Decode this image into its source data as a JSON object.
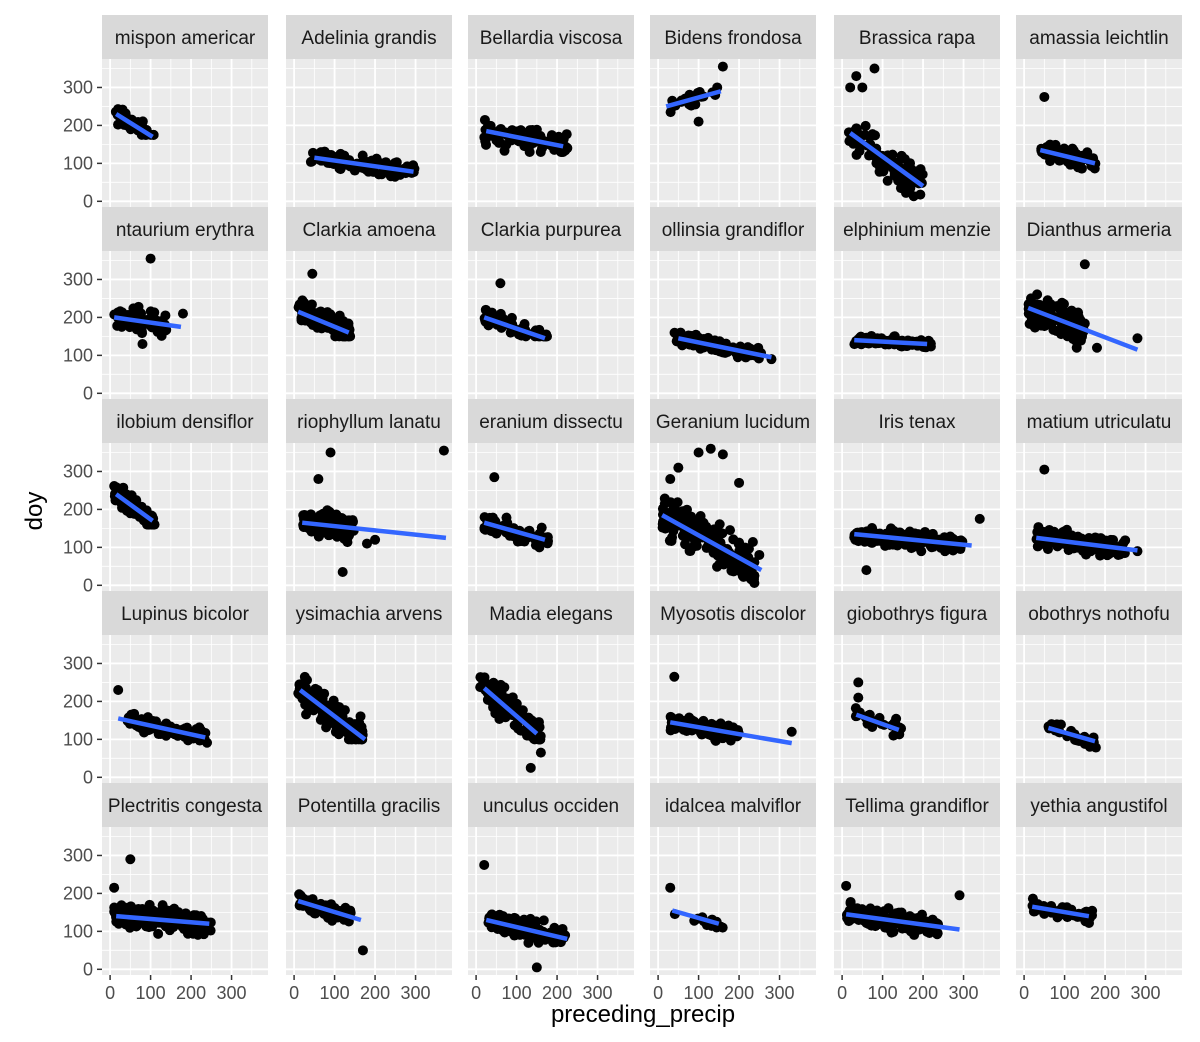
{
  "chart_data": {
    "type": "scatter",
    "subtype": "faceted scatter with linear trend lines",
    "xlabel": "preceding_precip",
    "ylabel": "doy",
    "xlim": [
      -20,
      390
    ],
    "ylim": [
      -15,
      375
    ],
    "x_ticks": [
      0,
      100,
      200,
      300
    ],
    "x_tick_labels": [
      "0",
      "100",
      "200",
      "300"
    ],
    "y_ticks": [
      0,
      100,
      200,
      300
    ],
    "y_tick_labels": [
      "0",
      "100",
      "200",
      "300"
    ],
    "grid": true,
    "facet_rows": 5,
    "facet_cols": 6,
    "colors": {
      "panel_bg": "#ebebeb",
      "grid_major": "#ffffff",
      "strip_bg": "#d9d9d9",
      "points": "#000000",
      "trend": "#3366ff",
      "tick_mark": "#333333"
    },
    "facets": [
      {
        "label": "mispon americar",
        "points": {
          "x": [
            10,
            110
          ],
          "y": [
            175,
            275
          ],
          "n": 55
        },
        "trend": [
          [
            15,
            230
          ],
          [
            105,
            170
          ]
        ]
      },
      {
        "label": "Adelinia grandis",
        "points": {
          "x": [
            40,
            300
          ],
          "y": [
            50,
            140
          ],
          "n": 110
        },
        "trend": [
          [
            50,
            115
          ],
          [
            295,
            78
          ]
        ]
      },
      {
        "label": "Bellardia viscosa",
        "points": {
          "x": [
            20,
            230
          ],
          "y": [
            130,
            290
          ],
          "n": 90
        },
        "trend": [
          [
            25,
            185
          ],
          [
            215,
            145
          ]
        ]
      },
      {
        "label": "Bidens frondosa",
        "points": {
          "x": [
            20,
            150
          ],
          "y": [
            210,
            300
          ],
          "n": 22
        },
        "extra": [
          [
            160,
            355
          ],
          [
            100,
            210
          ]
        ],
        "trend": [
          [
            20,
            250
          ],
          [
            155,
            290
          ]
        ]
      },
      {
        "label": "Brassica rapa",
        "points": {
          "x": [
            10,
            200
          ],
          "y": [
            10,
            200
          ],
          "n": 110
        },
        "extra": [
          [
            35,
            330
          ],
          [
            80,
            350
          ],
          [
            20,
            300
          ],
          [
            50,
            300
          ]
        ],
        "trend": [
          [
            20,
            180
          ],
          [
            200,
            40
          ]
        ]
      },
      {
        "label": "amassia leichtlin",
        "points": {
          "x": [
            40,
            180
          ],
          "y": [
            80,
            175
          ],
          "n": 80
        },
        "extra": [
          [
            50,
            275
          ]
        ],
        "trend": [
          [
            40,
            135
          ],
          [
            175,
            100
          ]
        ]
      },
      {
        "label": "ntaurium erythra",
        "points": {
          "x": [
            10,
            140
          ],
          "y": [
            140,
            270
          ],
          "n": 80
        },
        "extra": [
          [
            100,
            355
          ],
          [
            180,
            210
          ],
          [
            80,
            130
          ]
        ],
        "trend": [
          [
            10,
            200
          ],
          [
            175,
            175
          ]
        ]
      },
      {
        "label": "Clarkia amoena",
        "points": {
          "x": [
            10,
            140
          ],
          "y": [
            150,
            290
          ],
          "n": 110
        },
        "extra": [
          [
            45,
            315
          ]
        ],
        "trend": [
          [
            10,
            215
          ],
          [
            135,
            160
          ]
        ]
      },
      {
        "label": "Clarkia purpurea",
        "points": {
          "x": [
            20,
            180
          ],
          "y": [
            150,
            260
          ],
          "n": 60
        },
        "extra": [
          [
            60,
            290
          ]
        ],
        "trend": [
          [
            20,
            200
          ],
          [
            170,
            145
          ]
        ]
      },
      {
        "label": "ollinsia grandiflor",
        "points": {
          "x": [
            40,
            260
          ],
          "y": [
            90,
            170
          ],
          "n": 110
        },
        "extra": [
          [
            280,
            90
          ]
        ],
        "trend": [
          [
            50,
            145
          ],
          [
            280,
            95
          ]
        ]
      },
      {
        "label": "elphinium menzie",
        "points": {
          "x": [
            30,
            220
          ],
          "y": [
            110,
            165
          ],
          "n": 110
        },
        "trend": [
          [
            30,
            140
          ],
          [
            210,
            130
          ]
        ]
      },
      {
        "label": "Dianthus armeria",
        "points": {
          "x": [
            10,
            150
          ],
          "y": [
            130,
            320
          ],
          "n": 130
        },
        "extra": [
          [
            150,
            340
          ],
          [
            280,
            145
          ],
          [
            180,
            120
          ],
          [
            130,
            120
          ]
        ],
        "trend": [
          [
            10,
            225
          ],
          [
            280,
            115
          ]
        ]
      },
      {
        "label": "ilobium densiflor",
        "points": {
          "x": [
            10,
            110
          ],
          "y": [
            160,
            290
          ],
          "n": 110
        },
        "trend": [
          [
            15,
            240
          ],
          [
            105,
            170
          ]
        ]
      },
      {
        "label": "riophyllum lanatu",
        "points": {
          "x": [
            20,
            150
          ],
          "y": [
            80,
            230
          ],
          "n": 140
        },
        "extra": [
          [
            90,
            350
          ],
          [
            370,
            355
          ],
          [
            180,
            110
          ],
          [
            200,
            120
          ],
          [
            120,
            35
          ],
          [
            60,
            280
          ]
        ],
        "trend": [
          [
            20,
            165
          ],
          [
            375,
            125
          ]
        ]
      },
      {
        "label": "eranium dissectu",
        "points": {
          "x": [
            20,
            180
          ],
          "y": [
            100,
            220
          ],
          "n": 80
        },
        "extra": [
          [
            45,
            285
          ]
        ],
        "trend": [
          [
            20,
            165
          ],
          [
            170,
            120
          ]
        ]
      },
      {
        "label": "Geranium lucidum",
        "points": {
          "x": [
            10,
            240
          ],
          "y": [
            0,
            230
          ],
          "n": 200
        },
        "extra": [
          [
            50,
            310
          ],
          [
            100,
            350
          ],
          [
            130,
            360
          ],
          [
            160,
            345
          ],
          [
            30,
            280
          ],
          [
            200,
            270
          ],
          [
            250,
            80
          ]
        ],
        "trend": [
          [
            10,
            185
          ],
          [
            255,
            40
          ]
        ]
      },
      {
        "label": "Iris tenax",
        "points": {
          "x": [
            30,
            300
          ],
          "y": [
            90,
            190
          ],
          "n": 170
        },
        "extra": [
          [
            340,
            175
          ],
          [
            60,
            40
          ]
        ],
        "trend": [
          [
            30,
            135
          ],
          [
            320,
            105
          ]
        ]
      },
      {
        "label": "matium utriculatu",
        "points": {
          "x": [
            30,
            250
          ],
          "y": [
            50,
            160
          ],
          "n": 150
        },
        "extra": [
          [
            50,
            305
          ],
          [
            280,
            90
          ]
        ],
        "trend": [
          [
            30,
            125
          ],
          [
            280,
            92
          ]
        ]
      },
      {
        "label": "Lupinus bicolor",
        "points": {
          "x": [
            40,
            240
          ],
          "y": [
            90,
            175
          ],
          "n": 100
        },
        "extra": [
          [
            20,
            230
          ]
        ],
        "trend": [
          [
            20,
            155
          ],
          [
            235,
            105
          ]
        ]
      },
      {
        "label": "ysimachia arvens",
        "points": {
          "x": [
            10,
            170
          ],
          "y": [
            100,
            300
          ],
          "n": 120
        },
        "trend": [
          [
            15,
            230
          ],
          [
            175,
            100
          ]
        ]
      },
      {
        "label": "Madia elegans",
        "points": {
          "x": [
            10,
            160
          ],
          "y": [
            100,
            300
          ],
          "n": 120
        },
        "extra": [
          [
            160,
            65
          ],
          [
            135,
            25
          ]
        ],
        "trend": [
          [
            20,
            235
          ],
          [
            150,
            115
          ]
        ]
      },
      {
        "label": "Myosotis discolor",
        "points": {
          "x": [
            30,
            200
          ],
          "y": [
            80,
            180
          ],
          "n": 110
        },
        "extra": [
          [
            40,
            265
          ],
          [
            330,
            120
          ]
        ],
        "trend": [
          [
            30,
            145
          ],
          [
            330,
            90
          ]
        ]
      },
      {
        "label": "giobothrys figura",
        "points": {
          "x": [
            30,
            150
          ],
          "y": [
            100,
            200
          ],
          "n": 25
        },
        "extra": [
          [
            40,
            250
          ],
          [
            40,
            210
          ]
        ],
        "trend": [
          [
            35,
            165
          ],
          [
            140,
            125
          ]
        ]
      },
      {
        "label": "obothrys nothofu",
        "points": {
          "x": [
            60,
            180
          ],
          "y": [
            70,
            160
          ],
          "n": 35
        },
        "trend": [
          [
            60,
            130
          ],
          [
            175,
            95
          ]
        ]
      },
      {
        "label": "Plectritis congesta",
        "points": {
          "x": [
            10,
            250
          ],
          "y": [
            70,
            210
          ],
          "n": 170
        },
        "extra": [
          [
            50,
            290
          ],
          [
            10,
            215
          ]
        ],
        "trend": [
          [
            15,
            140
          ],
          [
            245,
            120
          ]
        ]
      },
      {
        "label": "Potentilla gracilis",
        "points": {
          "x": [
            10,
            140
          ],
          "y": [
            120,
            225
          ],
          "n": 70
        },
        "extra": [
          [
            170,
            50
          ]
        ],
        "trend": [
          [
            10,
            180
          ],
          [
            165,
            130
          ]
        ]
      },
      {
        "label": "unculus occiden",
        "points": {
          "x": [
            30,
            220
          ],
          "y": [
            50,
            170
          ],
          "n": 150
        },
        "extra": [
          [
            20,
            275
          ],
          [
            150,
            5
          ]
        ],
        "trend": [
          [
            25,
            130
          ],
          [
            225,
            80
          ]
        ]
      },
      {
        "label": "idalcea malviflor",
        "points": {
          "x": [
            40,
            160
          ],
          "y": [
            110,
            160
          ],
          "n": 15
        },
        "extra": [
          [
            30,
            215
          ]
        ],
        "trend": [
          [
            35,
            155
          ],
          [
            150,
            120
          ]
        ]
      },
      {
        "label": "Tellima grandiflor",
        "points": {
          "x": [
            10,
            240
          ],
          "y": [
            90,
            210
          ],
          "n": 170
        },
        "extra": [
          [
            10,
            220
          ],
          [
            290,
            195
          ]
        ],
        "trend": [
          [
            10,
            145
          ],
          [
            290,
            105
          ]
        ]
      },
      {
        "label": "yethia angustifol",
        "points": {
          "x": [
            20,
            170
          ],
          "y": [
            120,
            195
          ],
          "n": 50
        },
        "trend": [
          [
            20,
            165
          ],
          [
            160,
            140
          ]
        ]
      }
    ]
  }
}
